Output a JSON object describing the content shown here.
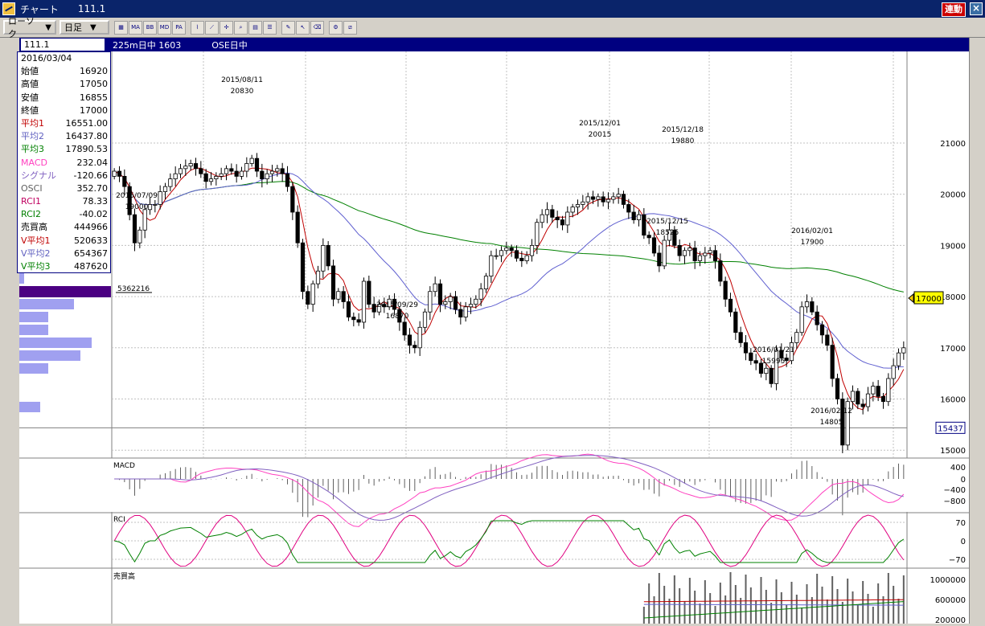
{
  "window": {
    "title": "チャート",
    "code": "111.1",
    "badge": "連動",
    "close": "×"
  },
  "toolbar": {
    "candle_type": "ローソク",
    "period": "日足",
    "buttons": [
      "chart-type",
      "MA",
      "BB",
      "MD",
      "PA",
      "line",
      "fibo",
      "cursor",
      "zoom",
      "print",
      "table",
      "pen",
      "pointer",
      "eraser",
      "settings",
      "hide"
    ]
  },
  "infobar": {
    "code": "111.1",
    "n225": "225m日中 1603",
    "ose": "OSE日中"
  },
  "panel": {
    "date": "2016/03/04",
    "rows": [
      {
        "label": "始値",
        "value": "16920",
        "color": "#000000"
      },
      {
        "label": "高値",
        "value": "17050",
        "color": "#000000"
      },
      {
        "label": "安値",
        "value": "16855",
        "color": "#000000"
      },
      {
        "label": "終値",
        "value": "17000",
        "color": "#000000"
      },
      {
        "label": "平均1",
        "value": "16551.00",
        "color": "#c00000"
      },
      {
        "label": "平均2",
        "value": "16437.80",
        "color": "#6060c0"
      },
      {
        "label": "平均3",
        "value": "17890.53",
        "color": "#008000"
      },
      {
        "label": "MACD",
        "value": "232.04",
        "color": "#ff40c0"
      },
      {
        "label": "シグナル",
        "value": "-120.66",
        "color": "#8060c0"
      },
      {
        "label": "OSCI",
        "value": "352.70",
        "color": "#606060"
      },
      {
        "label": "RCI1",
        "value": "78.33",
        "color": "#c00060"
      },
      {
        "label": "RCI2",
        "value": "-40.02",
        "color": "#008000"
      },
      {
        "label": "売買高",
        "value": "444966",
        "color": "#000000"
      },
      {
        "label": "V平均1",
        "value": "520633",
        "color": "#c00000"
      },
      {
        "label": "V平均2",
        "value": "654367",
        "color": "#6060c0"
      },
      {
        "label": "V平均3",
        "value": "487620",
        "color": "#008000"
      }
    ]
  },
  "price_axis": [
    "21000",
    "20000",
    "19000",
    "18000",
    "17000",
    "16000",
    "15000"
  ],
  "current_price": "17000",
  "ref_price": "15437",
  "volume_profile_label": "5362216",
  "annotations": [
    {
      "date": "2015/08/11",
      "value": "20830"
    },
    {
      "date": "2015/07/09",
      "value": "19000"
    },
    {
      "date": "2015/09/29",
      "value": "16870"
    },
    {
      "date": "2015/12/01",
      "value": "20015"
    },
    {
      "date": "2015/12/18",
      "value": "19880"
    },
    {
      "date": "2015/12/15",
      "value": "18525"
    },
    {
      "date": "2016/02/01",
      "value": "17900"
    },
    {
      "date": "2016/01/21",
      "value": "15995"
    },
    {
      "date": "2016/02/12",
      "value": "14805"
    }
  ],
  "macd": {
    "label": "MACD",
    "axis": [
      "400",
      "0",
      "−400",
      "−800"
    ]
  },
  "rci": {
    "label": "RCI",
    "axis": [
      "70",
      "0",
      "−70"
    ]
  },
  "volume": {
    "label": "売買高",
    "axis": [
      "1000000",
      "600000",
      "200000"
    ]
  },
  "chart_data": {
    "type": "candlestick",
    "x_range": [
      "2015/07/01",
      "2016/03/04"
    ],
    "ylim": [
      14500,
      21500
    ],
    "closes": [
      20450,
      20350,
      20150,
      19600,
      19050,
      19300,
      19700,
      19800,
      19800,
      20050,
      20150,
      20300,
      20400,
      20500,
      20550,
      20600,
      20500,
      20400,
      20250,
      20300,
      20350,
      20400,
      20500,
      20450,
      20350,
      20450,
      20600,
      20700,
      20450,
      20300,
      20400,
      20450,
      20500,
      20400,
      20150,
      19650,
      19050,
      18100,
      17850,
      18250,
      18500,
      19000,
      18600,
      17950,
      18100,
      17900,
      17600,
      17550,
      17500,
      18300,
      17850,
      17700,
      17850,
      17800,
      17950,
      17750,
      17500,
      17250,
      17050,
      17000,
      17400,
      17700,
      18100,
      18250,
      17850,
      17900,
      18000,
      17750,
      17600,
      17800,
      17850,
      17950,
      18150,
      18400,
      18800,
      18800,
      18900,
      18950,
      18900,
      18750,
      18700,
      18800,
      19000,
      19450,
      19600,
      19700,
      19550,
      19500,
      19400,
      19650,
      19750,
      19800,
      19850,
      19950,
      19900,
      19950,
      19850,
      19900,
      19950,
      20000,
      19800,
      19650,
      19500,
      19600,
      19200,
      19150,
      18850,
      18600,
      19100,
      19300,
      19000,
      18800,
      18900,
      18950,
      18700,
      18800,
      18850,
      18900,
      18700,
      18300,
      17950,
      17700,
      17300,
      17100,
      16900,
      16750,
      16700,
      16500,
      16600,
      16300,
      16950,
      16800,
      16750,
      17100,
      17300,
      17800,
      17900,
      17700,
      17450,
      17250,
      17050,
      16400,
      16000,
      15100,
      15950,
      16150,
      15900,
      15850,
      16100,
      16250,
      16050,
      15950,
      16400,
      16650,
      16900,
      17000
    ]
  }
}
